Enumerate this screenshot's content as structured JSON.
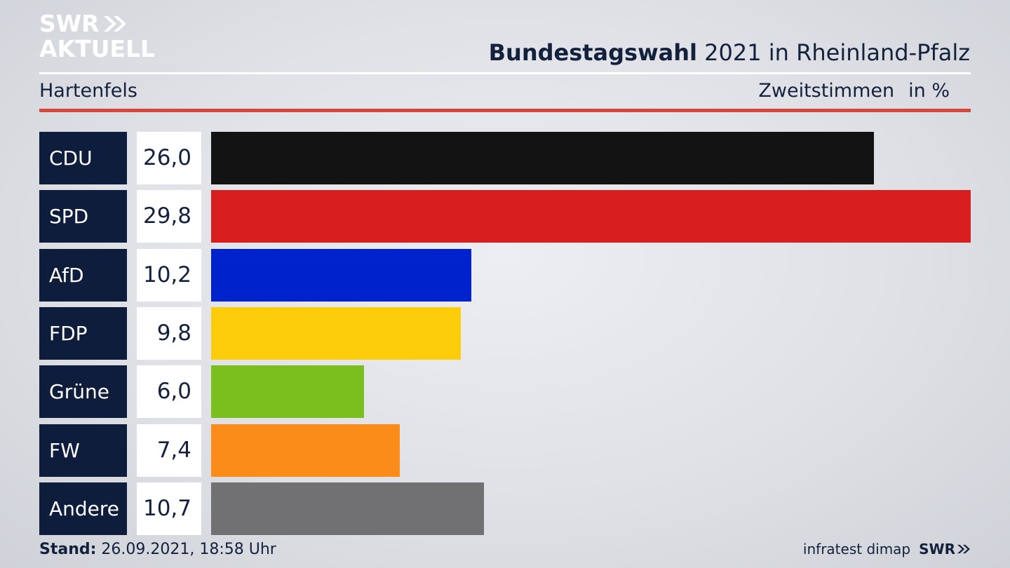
{
  "brand": {
    "line1": "SWR",
    "line2": "AKTUELL"
  },
  "header": {
    "title_bold": "Bundestagswahl",
    "title_rest": " 2021 in Rheinland-Pfalz",
    "region": "Hartenfels",
    "metric": "Zweitstimmen",
    "unit": "in %"
  },
  "colors": {
    "accent_rule": "#d5473b",
    "label_bg": "#0e1d3b"
  },
  "chart_data": {
    "type": "bar",
    "categories": [
      "CDU",
      "SPD",
      "AfD",
      "FDP",
      "Grüne",
      "FW",
      "Andere"
    ],
    "values": [
      26.0,
      29.8,
      10.2,
      9.8,
      6.0,
      7.4,
      10.7
    ],
    "value_labels": [
      "26,0",
      "29,8",
      "10,2",
      "9,8",
      "6,0",
      "7,4",
      "10,7"
    ],
    "colors": [
      "#131313",
      "#d81f1f",
      "#0022cc",
      "#fdcd0b",
      "#7abf1e",
      "#fb8c19",
      "#717173"
    ],
    "title": "Bundestagswahl 2021 in Rheinland-Pfalz",
    "xlabel": "",
    "ylabel": "",
    "xlim": [
      0,
      29.8
    ],
    "orientation": "horizontal"
  },
  "footer": {
    "stand_label": "Stand:",
    "stand_value": " 26.09.2021, 18:58 Uhr",
    "source": "infratest dimap",
    "brand": "SWR"
  }
}
